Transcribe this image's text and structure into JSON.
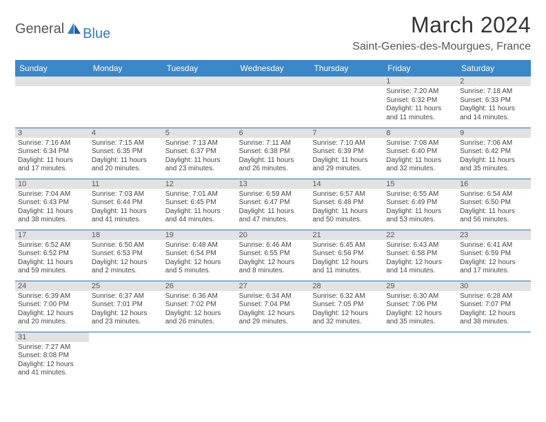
{
  "brand": {
    "part1": "General",
    "part2": "Blue"
  },
  "title": "March 2024",
  "location": "Saint-Genies-des-Mourgues, France",
  "colors": {
    "header_bg": "#3b87c8",
    "header_text": "#ffffff",
    "row_divider": "#2f6fa8",
    "daynum_bg": "#e2e2e2",
    "body_text": "#444444",
    "brand_gray": "#555555",
    "brand_blue": "#2f7bbf"
  },
  "weekdays": [
    "Sunday",
    "Monday",
    "Tuesday",
    "Wednesday",
    "Thursday",
    "Friday",
    "Saturday"
  ],
  "weeks": [
    [
      null,
      null,
      null,
      null,
      null,
      {
        "n": "1",
        "sr": "7:20 AM",
        "ss": "6:32 PM",
        "dl": "11 hours and 11 minutes."
      },
      {
        "n": "2",
        "sr": "7:18 AM",
        "ss": "6:33 PM",
        "dl": "11 hours and 14 minutes."
      }
    ],
    [
      {
        "n": "3",
        "sr": "7:16 AM",
        "ss": "6:34 PM",
        "dl": "11 hours and 17 minutes."
      },
      {
        "n": "4",
        "sr": "7:15 AM",
        "ss": "6:35 PM",
        "dl": "11 hours and 20 minutes."
      },
      {
        "n": "5",
        "sr": "7:13 AM",
        "ss": "6:37 PM",
        "dl": "11 hours and 23 minutes."
      },
      {
        "n": "6",
        "sr": "7:11 AM",
        "ss": "6:38 PM",
        "dl": "11 hours and 26 minutes."
      },
      {
        "n": "7",
        "sr": "7:10 AM",
        "ss": "6:39 PM",
        "dl": "11 hours and 29 minutes."
      },
      {
        "n": "8",
        "sr": "7:08 AM",
        "ss": "6:40 PM",
        "dl": "11 hours and 32 minutes."
      },
      {
        "n": "9",
        "sr": "7:06 AM",
        "ss": "6:42 PM",
        "dl": "11 hours and 35 minutes."
      }
    ],
    [
      {
        "n": "10",
        "sr": "7:04 AM",
        "ss": "6:43 PM",
        "dl": "11 hours and 38 minutes."
      },
      {
        "n": "11",
        "sr": "7:03 AM",
        "ss": "6:44 PM",
        "dl": "11 hours and 41 minutes."
      },
      {
        "n": "12",
        "sr": "7:01 AM",
        "ss": "6:45 PM",
        "dl": "11 hours and 44 minutes."
      },
      {
        "n": "13",
        "sr": "6:59 AM",
        "ss": "6:47 PM",
        "dl": "11 hours and 47 minutes."
      },
      {
        "n": "14",
        "sr": "6:57 AM",
        "ss": "6:48 PM",
        "dl": "11 hours and 50 minutes."
      },
      {
        "n": "15",
        "sr": "6:55 AM",
        "ss": "6:49 PM",
        "dl": "11 hours and 53 minutes."
      },
      {
        "n": "16",
        "sr": "6:54 AM",
        "ss": "6:50 PM",
        "dl": "11 hours and 56 minutes."
      }
    ],
    [
      {
        "n": "17",
        "sr": "6:52 AM",
        "ss": "6:52 PM",
        "dl": "11 hours and 59 minutes."
      },
      {
        "n": "18",
        "sr": "6:50 AM",
        "ss": "6:53 PM",
        "dl": "12 hours and 2 minutes."
      },
      {
        "n": "19",
        "sr": "6:48 AM",
        "ss": "6:54 PM",
        "dl": "12 hours and 5 minutes."
      },
      {
        "n": "20",
        "sr": "6:46 AM",
        "ss": "6:55 PM",
        "dl": "12 hours and 8 minutes."
      },
      {
        "n": "21",
        "sr": "6:45 AM",
        "ss": "6:56 PM",
        "dl": "12 hours and 11 minutes."
      },
      {
        "n": "22",
        "sr": "6:43 AM",
        "ss": "6:58 PM",
        "dl": "12 hours and 14 minutes."
      },
      {
        "n": "23",
        "sr": "6:41 AM",
        "ss": "6:59 PM",
        "dl": "12 hours and 17 minutes."
      }
    ],
    [
      {
        "n": "24",
        "sr": "6:39 AM",
        "ss": "7:00 PM",
        "dl": "12 hours and 20 minutes."
      },
      {
        "n": "25",
        "sr": "6:37 AM",
        "ss": "7:01 PM",
        "dl": "12 hours and 23 minutes."
      },
      {
        "n": "26",
        "sr": "6:36 AM",
        "ss": "7:02 PM",
        "dl": "12 hours and 26 minutes."
      },
      {
        "n": "27",
        "sr": "6:34 AM",
        "ss": "7:04 PM",
        "dl": "12 hours and 29 minutes."
      },
      {
        "n": "28",
        "sr": "6:32 AM",
        "ss": "7:05 PM",
        "dl": "12 hours and 32 minutes."
      },
      {
        "n": "29",
        "sr": "6:30 AM",
        "ss": "7:06 PM",
        "dl": "12 hours and 35 minutes."
      },
      {
        "n": "30",
        "sr": "6:28 AM",
        "ss": "7:07 PM",
        "dl": "12 hours and 38 minutes."
      }
    ],
    [
      {
        "n": "31",
        "sr": "7:27 AM",
        "ss": "8:08 PM",
        "dl": "12 hours and 41 minutes."
      },
      null,
      null,
      null,
      null,
      null,
      null
    ]
  ],
  "labels": {
    "sunrise": "Sunrise:",
    "sunset": "Sunset:",
    "daylight": "Daylight:"
  }
}
